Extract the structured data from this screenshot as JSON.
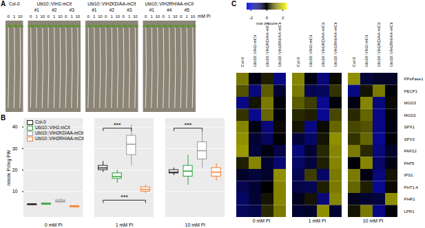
{
  "chart_data": [
    {
      "panel": "A",
      "type": "photo",
      "groups": [
        {
          "label": "Col-0",
          "lines": [
            null
          ]
        },
        {
          "label": "Ubi10::VIH2-mCit",
          "lines": [
            "#1",
            "#2",
            "#3"
          ]
        },
        {
          "label": "Ubi10::VIH2KD/AA-mCit",
          "lines": [
            "#1",
            "#2",
            "#3"
          ]
        },
        {
          "label": "Ubi10::VIH2RH/AA-mCit",
          "lines": [
            "#1",
            "#4",
            "#5"
          ]
        }
      ],
      "conditions": [
        0,
        1,
        10
      ],
      "unit": "mM Pi"
    },
    {
      "panel": "B",
      "type": "box",
      "ylabel": "nmole Pi/mg FW",
      "ylim": [
        -2,
        44
      ],
      "yticks": [
        10,
        20,
        30,
        40
      ],
      "grid": true,
      "legend": "top-left",
      "categories": [
        "0 mM Pi",
        "1 mM Pi",
        "10 mM Pi"
      ],
      "series": [
        {
          "name": "Col-0",
          "color": "#222222",
          "values": [
            {
              "min": 3.6,
              "q1": 3.8,
              "median": 4.0,
              "q3": 4.2,
              "max": 4.4
            },
            {
              "min": 19,
              "q1": 20,
              "median": 21,
              "q3": 22,
              "max": 24
            },
            {
              "min": 17.5,
              "q1": 18.5,
              "median": 19,
              "q3": 20,
              "max": 21
            }
          ]
        },
        {
          "name": "Ubi10::VIH2-mCit",
          "color": "#2e9e3a",
          "values": [
            {
              "min": 3.8,
              "q1": 4.0,
              "median": 4.2,
              "q3": 4.5,
              "max": 4.8
            },
            {
              "min": 14,
              "q1": 16,
              "median": 17,
              "q3": 18.5,
              "max": 20
            },
            {
              "min": 13,
              "q1": 17,
              "median": 19.5,
              "q3": 22,
              "max": 27
            }
          ]
        },
        {
          "name": "Ubi10::VIH2KD/AA-mCit",
          "color": "#9a9a9a",
          "values": [
            {
              "min": 4.5,
              "q1": 5,
              "median": 5.5,
              "q3": 6,
              "max": 6.8
            },
            {
              "min": 22,
              "q1": 27,
              "median": 32,
              "q3": 36,
              "max": 41
            },
            {
              "min": 21,
              "q1": 25,
              "median": 29,
              "q3": 33,
              "max": 38
            }
          ]
        },
        {
          "name": "Ubi10::VIH2RH/AA-mCit",
          "color": "#f28033",
          "values": [
            {
              "min": 2.5,
              "q1": 2.8,
              "median": 3,
              "q3": 3.3,
              "max": 3.6
            },
            {
              "min": 9,
              "q1": 10,
              "median": 11,
              "q3": 12,
              "max": 13
            },
            {
              "min": 15,
              "q1": 17,
              "median": 19,
              "q3": 21,
              "max": 23
            }
          ]
        }
      ],
      "annotations": [
        {
          "category": "1 mM Pi",
          "from": "Col-0",
          "to": "Ubi10::VIH2KD/AA-mCit",
          "y": 39.5,
          "text": "***"
        },
        {
          "category": "1 mM Pi",
          "from": "Col-0",
          "to": "Ubi10::VIH2RH/AA-mCit",
          "y": 6,
          "text": "***"
        },
        {
          "category": "10 mM Pi",
          "from": "Col-0",
          "to": "Ubi10::VIH2KD/AA-mCit",
          "y": 39.5,
          "text": "***"
        }
      ]
    },
    {
      "panel": "C",
      "type": "heatmap",
      "categories": [
        "0 mM Pi",
        "1 mM Pi",
        "10 mM Pi"
      ],
      "columns": [
        "Col-0",
        "Ubi10::VIH2-mCit",
        "Ubi10::VIH2KD/AA-mCit",
        "Ubi10::VIH2RH/AA-mCit"
      ],
      "rows": [
        "PPsPase1",
        "PECP1",
        "MGD3",
        "MGD2",
        "SPX1",
        "SPX3",
        "PAP22",
        "PAP5",
        "IPS1",
        "PHT1;4",
        "PHR1",
        "LPR1"
      ],
      "values": [
        [
          [
            1.2,
            -0.2,
            0.3,
            -1.3
          ],
          [
            0.8,
            -1.2,
            0.9,
            -0.5
          ],
          [
            -1.3,
            0.2,
            1.2,
            -0.1
          ],
          [
            0.5,
            -1.4,
            1.0,
            -0.1
          ],
          [
            1.3,
            -0.2,
            -1.2,
            0.1
          ],
          [
            1.4,
            -0.5,
            -0.9,
            0
          ],
          [
            1.5,
            -0.6,
            -0.2,
            -0.7
          ],
          [
            0.3,
            1.3,
            -0.5,
            -1.1
          ],
          [
            -0.4,
            -0.6,
            -0.4,
            1.4
          ],
          [
            -0.8,
            -0.5,
            0.0,
            1.3
          ],
          [
            -1.0,
            -0.5,
            0.2,
            1.3
          ],
          [
            -0.9,
            -0.7,
            0.4,
            1.2
          ]
        ],
        [
          [
            1.3,
            -0.2,
            -1.2,
            0.1
          ],
          [
            1.2,
            -0.8,
            -0.9,
            0.5
          ],
          [
            0.9,
            0.6,
            -1.4,
            -0.1
          ],
          [
            0.4,
            0.3,
            -1.4,
            0.7
          ],
          [
            0.2,
            -1.3,
            0.1,
            1.0
          ],
          [
            -0.6,
            -1.0,
            0.2,
            1.4
          ],
          [
            -1.2,
            -0.5,
            0.4,
            1.3
          ],
          [
            -1.0,
            -0.6,
            0.3,
            1.3
          ],
          [
            -0.8,
            0.6,
            -1.0,
            1.2
          ],
          [
            -0.7,
            -0.8,
            0.3,
            1.2
          ],
          [
            -0.3,
            0.2,
            -1.2,
            1.3
          ],
          [
            -0.5,
            -0.4,
            1.4,
            -0.5
          ]
        ],
        [
          [
            1.4,
            -0.6,
            -0.4,
            -0.4
          ],
          [
            -1.3,
            0.2,
            1.2,
            -0.1
          ],
          [
            -0.2,
            1.3,
            -1.2,
            0.1
          ],
          [
            0.4,
            1.0,
            -1.3,
            -0.1
          ],
          [
            0.7,
            0.8,
            -1.3,
            -0.2
          ],
          [
            0.5,
            1.0,
            -1.4,
            -0.1
          ],
          [
            1.2,
            0.4,
            -1.2,
            -0.4
          ],
          [
            -0.1,
            1.3,
            -1.0,
            -0.2
          ],
          [
            1.2,
            -0.2,
            -1.2,
            0.2
          ],
          [
            1.0,
            0.3,
            -1.4,
            0.1
          ],
          [
            -0.3,
            -0.5,
            -0.6,
            1.4
          ],
          [
            0.2,
            1.2,
            -1.3,
            -0.1
          ]
        ]
      ],
      "colorbar": {
        "label": "row z-score",
        "range": [
          -2.5,
          2.5
        ],
        "ticks": [
          -2,
          0,
          2
        ],
        "colors": [
          "#1010ff",
          "#000000",
          "#ffff00"
        ]
      }
    }
  ]
}
